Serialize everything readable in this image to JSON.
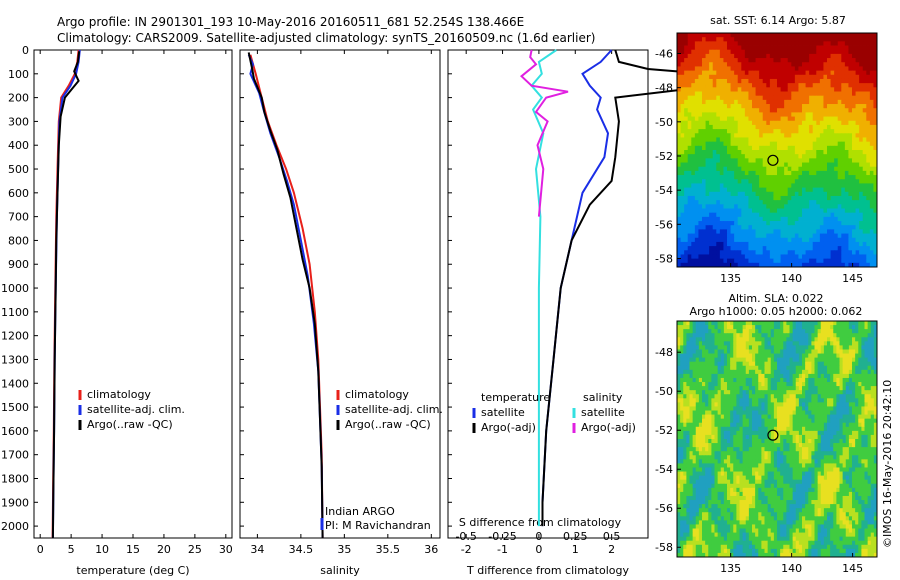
{
  "header": {
    "line1": "Argo profile: IN 2901301_193 10-May-2016 20160511_681 52.254S 138.466E",
    "line2": "Climatology: CARS2009. Satellite-adjusted climatology: synTS_20160509.nc (1.6d earlier)"
  },
  "colors": {
    "clim": "#e8201a",
    "sat": "#1a2ee6",
    "argo": "#000000",
    "sat_s": "#33e0e0",
    "argo_s": "#e020e0"
  },
  "chart_data": [
    {
      "type": "line",
      "panel": "temperature",
      "xlabel": "temperature (deg C)",
      "ylabel": "",
      "xlim": [
        -1,
        31
      ],
      "ylim": [
        2050,
        0
      ],
      "x_ticks": [
        0,
        5,
        10,
        15,
        20,
        25,
        30
      ],
      "y_ticks": [
        0,
        100,
        200,
        300,
        400,
        500,
        600,
        700,
        800,
        900,
        1000,
        1100,
        1200,
        1300,
        1400,
        1500,
        1600,
        1700,
        1800,
        1900,
        2000
      ],
      "legend": [
        "climatology",
        "satellite-adj. clim.",
        "Argo(..raw -QC)"
      ],
      "series": [
        {
          "name": "climatology",
          "points": [
            [
              6.2,
              0
            ],
            [
              6.0,
              50
            ],
            [
              5.6,
              100
            ],
            [
              4.6,
              150
            ],
            [
              3.4,
              200
            ],
            [
              3.0,
              300
            ],
            [
              2.8,
              500
            ],
            [
              2.6,
              700
            ],
            [
              2.45,
              1000
            ],
            [
              2.3,
              1300
            ],
            [
              2.2,
              1600
            ],
            [
              2.1,
              1800
            ],
            [
              2.0,
              2050
            ]
          ]
        },
        {
          "name": "satellite-adj. clim.",
          "points": [
            [
              6.4,
              0
            ],
            [
              6.2,
              50
            ],
            [
              5.8,
              100
            ],
            [
              4.9,
              150
            ],
            [
              3.6,
              200
            ],
            [
              3.1,
              300
            ],
            [
              2.9,
              500
            ],
            [
              2.7,
              700
            ],
            [
              2.5,
              1000
            ],
            [
              2.35,
              1300
            ],
            [
              2.25,
              1600
            ],
            [
              2.15,
              1800
            ],
            [
              2.05,
              2050
            ]
          ]
        },
        {
          "name": "Argo(..raw -QC)",
          "points": [
            [
              6.3,
              5
            ],
            [
              6.1,
              50
            ],
            [
              5.5,
              90
            ],
            [
              6.2,
              130
            ],
            [
              5.1,
              165
            ],
            [
              4.0,
              200
            ],
            [
              3.3,
              280
            ],
            [
              3.0,
              400
            ],
            [
              2.8,
              600
            ],
            [
              2.6,
              800
            ],
            [
              2.5,
              1000
            ],
            [
              2.35,
              1300
            ],
            [
              2.25,
              1600
            ],
            [
              2.15,
              1800
            ],
            [
              2.05,
              2050
            ]
          ]
        }
      ]
    },
    {
      "type": "line",
      "panel": "salinity",
      "xlabel": "salinity",
      "xlim": [
        33.8,
        36.1
      ],
      "ylim": [
        2050,
        0
      ],
      "x_ticks": [
        34,
        34.5,
        35,
        35.5,
        36
      ],
      "legend": [
        "climatology",
        "satellite-adj. clim.",
        "Argo(..raw -QC)"
      ],
      "annotation": [
        "Indian ARGO",
        "PI: M Ravichandran"
      ],
      "series": [
        {
          "name": "climatology",
          "points": [
            [
              33.92,
              20
            ],
            [
              33.98,
              100
            ],
            [
              34.05,
              200
            ],
            [
              34.12,
              300
            ],
            [
              34.22,
              400
            ],
            [
              34.33,
              500
            ],
            [
              34.42,
              600
            ],
            [
              34.52,
              750
            ],
            [
              34.6,
              900
            ],
            [
              34.66,
              1100
            ],
            [
              34.7,
              1300
            ],
            [
              34.72,
              1500
            ],
            [
              34.74,
              1700
            ],
            [
              34.75,
              2050
            ]
          ]
        },
        {
          "name": "satellite-adj. clim.",
          "points": [
            [
              33.9,
              20
            ],
            [
              33.95,
              60
            ],
            [
              33.92,
              100
            ],
            [
              34.02,
              180
            ],
            [
              34.07,
              250
            ],
            [
              34.15,
              350
            ],
            [
              34.25,
              450
            ],
            [
              34.34,
              550
            ],
            [
              34.42,
              650
            ],
            [
              34.5,
              800
            ],
            [
              34.58,
              950
            ],
            [
              34.65,
              1150
            ],
            [
              34.7,
              1350
            ],
            [
              34.72,
              1550
            ],
            [
              34.74,
              1750
            ],
            [
              34.75,
              2050
            ]
          ]
        },
        {
          "name": "Argo(..raw -QC)",
          "points": [
            [
              33.9,
              10
            ],
            [
              33.94,
              80
            ],
            [
              33.96,
              120
            ],
            [
              34.05,
              200
            ],
            [
              34.08,
              260
            ],
            [
              34.15,
              340
            ],
            [
              34.23,
              420
            ],
            [
              34.3,
              520
            ],
            [
              34.38,
              620
            ],
            [
              34.45,
              750
            ],
            [
              34.52,
              880
            ],
            [
              34.6,
              1000
            ],
            [
              34.66,
              1150
            ],
            [
              34.7,
              1350
            ],
            [
              34.72,
              1550
            ],
            [
              34.74,
              1750
            ],
            [
              34.75,
              2050
            ]
          ]
        }
      ]
    },
    {
      "type": "line",
      "panel": "difference",
      "xlabel": "T difference from climatology",
      "xlabel2": "S difference from climatology",
      "xlim": [
        -2.5,
        3.0
      ],
      "ylim": [
        2050,
        0
      ],
      "x_ticks": [
        -2,
        -1,
        0,
        1,
        2
      ],
      "x2_ticks": [
        "-0.5",
        "-0.25",
        "0",
        "0.25",
        "0.5"
      ],
      "legend_title_1": "temperature",
      "legend_title_2": "salinity",
      "legend": [
        "satellite",
        "Argo(-adj)",
        "satellite",
        "Argo(-adj)"
      ],
      "series": [
        {
          "name": "satellite",
          "group": "temperature",
          "points": [
            [
              2.0,
              0
            ],
            [
              1.7,
              50
            ],
            [
              1.2,
              100
            ],
            [
              1.4,
              150
            ],
            [
              1.7,
              200
            ],
            [
              1.6,
              250
            ],
            [
              1.9,
              350
            ],
            [
              1.8,
              450
            ],
            [
              1.2,
              600
            ],
            [
              0.9,
              800
            ],
            [
              0.6,
              1000
            ],
            [
              0.4,
              1300
            ],
            [
              0.2,
              1600
            ],
            [
              0.1,
              1900
            ],
            [
              0.1,
              2000
            ]
          ]
        },
        {
          "name": "Argo(-adj)",
          "group": "temperature",
          "points": [
            [
              2.1,
              0
            ],
            [
              2.2,
              50
            ],
            [
              3.0,
              80
            ],
            [
              4.6,
              100
            ],
            [
              5.4,
              120
            ],
            [
              4.3,
              160
            ],
            [
              2.1,
              200
            ],
            [
              2.2,
              300
            ],
            [
              2.1,
              450
            ],
            [
              2.0,
              550
            ],
            [
              1.4,
              650
            ],
            [
              0.9,
              800
            ],
            [
              0.6,
              1000
            ],
            [
              0.4,
              1300
            ],
            [
              0.2,
              1600
            ],
            [
              0.1,
              1900
            ],
            [
              0.1,
              2000
            ]
          ]
        },
        {
          "name": "satellite",
          "group": "salinity",
          "points": [
            [
              0.12,
              0
            ],
            [
              0.0,
              50
            ],
            [
              0.02,
              100
            ],
            [
              -0.05,
              150
            ],
            [
              0.02,
              200
            ],
            [
              -0.04,
              250
            ],
            [
              0.03,
              350
            ],
            [
              -0.02,
              500
            ],
            [
              0.01,
              700
            ],
            [
              0.0,
              1000
            ],
            [
              0.0,
              1500
            ],
            [
              0.0,
              2000
            ]
          ]
        },
        {
          "name": "Argo(-adj)",
          "group": "salinity",
          "points": [
            [
              -0.05,
              0
            ],
            [
              -0.06,
              30
            ],
            [
              -0.02,
              60
            ],
            [
              -0.12,
              110
            ],
            [
              -0.05,
              150
            ],
            [
              0.2,
              175
            ],
            [
              0.05,
              200
            ],
            [
              -0.02,
              260
            ],
            [
              0.06,
              300
            ],
            [
              -0.01,
              400
            ],
            [
              0.03,
              500
            ],
            [
              0.0,
              700
            ]
          ]
        }
      ]
    }
  ],
  "map_sst": {
    "title": "sat. SST: 6.14  Argo: 5.87",
    "x_ticks": [
      "135",
      "140",
      "145"
    ],
    "y_ticks": [
      "-46",
      "-48",
      "-50",
      "-52",
      "-54",
      "-56",
      "-58"
    ],
    "marker": {
      "lon": 138.466,
      "lat": -52.254
    }
  },
  "map_sla": {
    "title1": "Altim. SLA: 0.022",
    "title2": "Argo h1000: 0.05  h2000: 0.062",
    "x_ticks": [
      "135",
      "140",
      "145"
    ],
    "y_ticks": [
      "-48",
      "-50",
      "-52",
      "-54",
      "-56",
      "-58"
    ],
    "marker": {
      "lon": 138.466,
      "lat": -52.254
    }
  },
  "credit": "©IMOS 16-May-2016 20:42:10"
}
